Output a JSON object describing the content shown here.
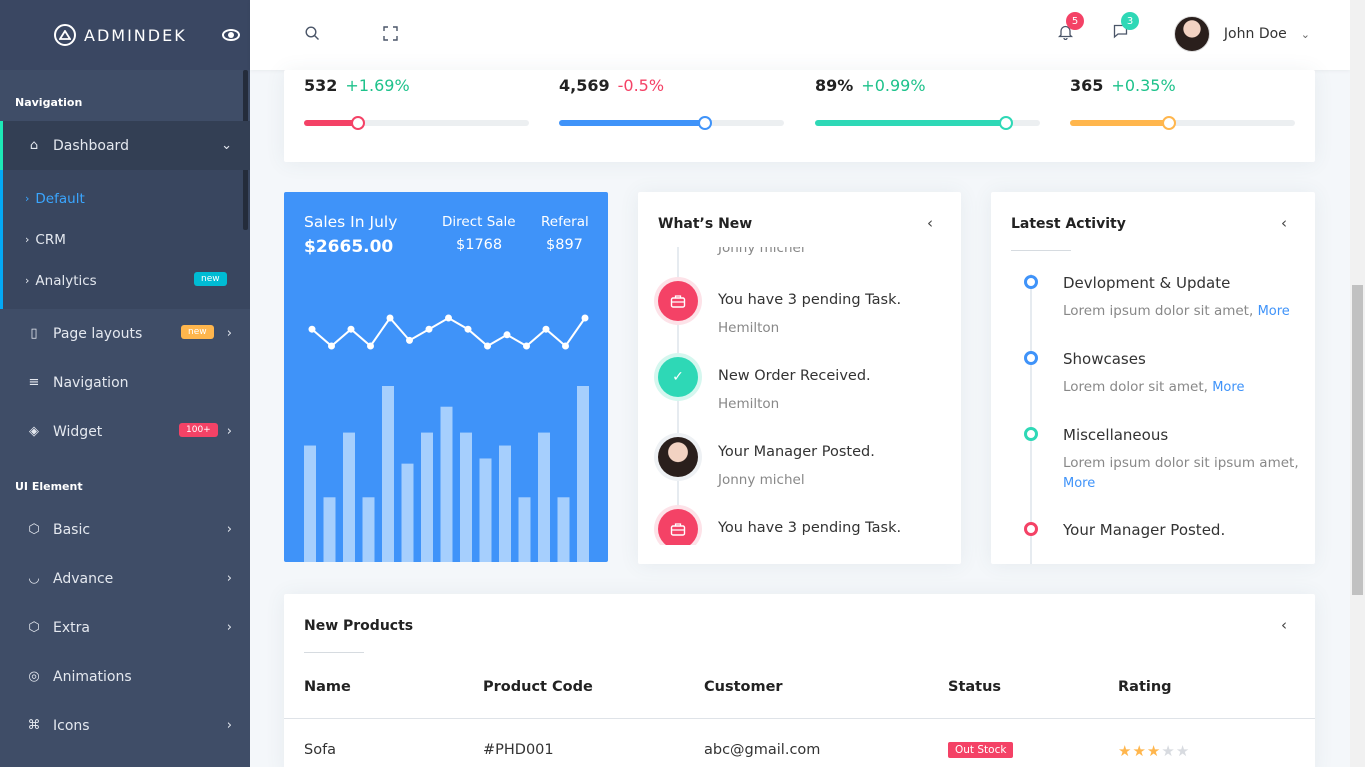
{
  "brand": {
    "name": "ADMINDEK",
    "logo_icon": "triangle-logo-icon",
    "toggle_icon": "eye-icon"
  },
  "sidebar": {
    "caption_nav": "Navigation",
    "dashboard": {
      "label": "Dashboard",
      "icon": "home-icon"
    },
    "submenu": [
      {
        "label": "Default",
        "selected": true
      },
      {
        "label": "CRM"
      },
      {
        "label": "Analytics",
        "badge": "new"
      }
    ],
    "items": [
      {
        "label": "Page layouts",
        "icon": "layout-icon",
        "badge": "new"
      },
      {
        "label": "Navigation",
        "icon": "menu-icon"
      },
      {
        "label": "Widget",
        "icon": "layers-icon",
        "badge": "100+"
      }
    ],
    "caption_ui": "UI Element",
    "ui_items": [
      {
        "label": "Basic",
        "icon": "box-icon"
      },
      {
        "label": "Advance",
        "icon": "advance-icon"
      },
      {
        "label": "Extra",
        "icon": "package-icon"
      },
      {
        "label": "Animations",
        "icon": "aperture-icon"
      },
      {
        "label": "Icons",
        "icon": "command-icon"
      }
    ]
  },
  "header": {
    "search_icon": "search-icon",
    "fullscreen_icon": "maximize-icon",
    "bell_count": "5",
    "chat_count": "3",
    "user_name": "John Doe"
  },
  "stats": [
    {
      "value": "532",
      "change": "+1.69%",
      "change_color": "#1ec28b",
      "bar_color": "#f44266",
      "progress": 0.24
    },
    {
      "value": "4,569",
      "change": "-0.5%",
      "change_color": "#f44266",
      "bar_color": "#3f93f9",
      "progress": 0.65
    },
    {
      "value": "89%",
      "change": "+0.99%",
      "change_color": "#1ec28b",
      "bar_color": "#2ed8b6",
      "progress": 0.85
    },
    {
      "value": "365",
      "change": "+0.35%",
      "change_color": "#1ec28b",
      "bar_color": "#ffb64d",
      "progress": 0.44
    }
  ],
  "sales": {
    "title": "Sales In July",
    "amount": "$2665.00",
    "direct_label": "Direct Sale",
    "direct_value": "$1768",
    "referal_label": "Referal",
    "referal_value": "$897",
    "line_values": [
      6,
      3,
      6,
      3,
      8,
      4,
      6,
      8,
      6,
      3,
      5,
      3,
      6,
      3,
      8
    ],
    "bar_values": [
      45,
      25,
      50,
      25,
      68,
      38,
      50,
      60,
      50,
      40,
      45,
      25,
      50,
      25,
      68
    ]
  },
  "whats_new": {
    "title": "What’s New",
    "partial_sub": "Jonny michel",
    "events": [
      {
        "title": "You have 3 pending Task.",
        "sub": "Hemilton",
        "icon": "briefcase-icon",
        "color": "#f44266"
      },
      {
        "title": "New Order Received.",
        "sub": "Hemilton",
        "icon": "check-icon",
        "color": "#2ed8b6"
      },
      {
        "title": "Your Manager Posted.",
        "sub": "Jonny michel",
        "icon": "avatar",
        "color": "#333"
      },
      {
        "title": "You have 3 pending Task.",
        "sub": "",
        "icon": "briefcase-icon",
        "color": "#f44266"
      }
    ]
  },
  "latest_activity": {
    "title": "Latest Activity",
    "items": [
      {
        "title": "Devlopment & Update",
        "desc": "Lorem ipsum dolor sit amet,",
        "more": "More",
        "color": "#3f93f9"
      },
      {
        "title": "Showcases",
        "desc": "Lorem dolor sit amet,",
        "more": "More",
        "color": "#3f93f9"
      },
      {
        "title": "Miscellaneous",
        "desc": "Lorem ipsum dolor sit ipsum amet,",
        "more": "More",
        "color": "#2ed8b6"
      },
      {
        "title": "Your Manager Posted.",
        "desc": "",
        "more": "",
        "color": "#f44266"
      }
    ]
  },
  "products": {
    "title": "New Products",
    "columns": [
      "Name",
      "Product Code",
      "Customer",
      "Status",
      "Rating"
    ],
    "rows": [
      {
        "name": "Sofa",
        "code": "#PHD001",
        "customer": "abc@gmail.com",
        "status": "Out Stock",
        "rating": 3,
        "rating_max": 5
      }
    ]
  }
}
